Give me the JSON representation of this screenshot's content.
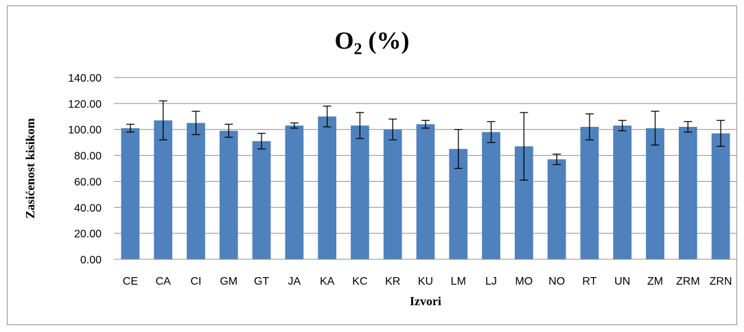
{
  "chart_data": {
    "type": "bar",
    "title": {
      "main": "O",
      "sub": "2",
      "tail": " (%)"
    },
    "xlabel": "Izvori",
    "ylabel": "Zasićenost kisikom",
    "ylim": [
      0,
      140
    ],
    "yticks": [
      "0.00",
      "20.00",
      "40.00",
      "60.00",
      "80.00",
      "100.00",
      "120.00",
      "140.00"
    ],
    "grid": true,
    "bar_color": "#4f81bd",
    "categories": [
      "CE",
      "CA",
      "CI",
      "GM",
      "GT",
      "JA",
      "KA",
      "KC",
      "KR",
      "KU",
      "LM",
      "LJ",
      "MO",
      "NO",
      "RT",
      "UN",
      "ZM",
      "ZRM",
      "ZRN"
    ],
    "values": [
      101,
      107,
      105,
      99,
      91,
      103,
      110,
      103,
      100,
      104,
      85,
      98,
      87,
      77,
      102,
      103,
      101,
      102,
      97
    ],
    "error": [
      3,
      15,
      9,
      5,
      6,
      2,
      8,
      10,
      8,
      3,
      15,
      8,
      26,
      4,
      10,
      4,
      13,
      4,
      10
    ]
  }
}
